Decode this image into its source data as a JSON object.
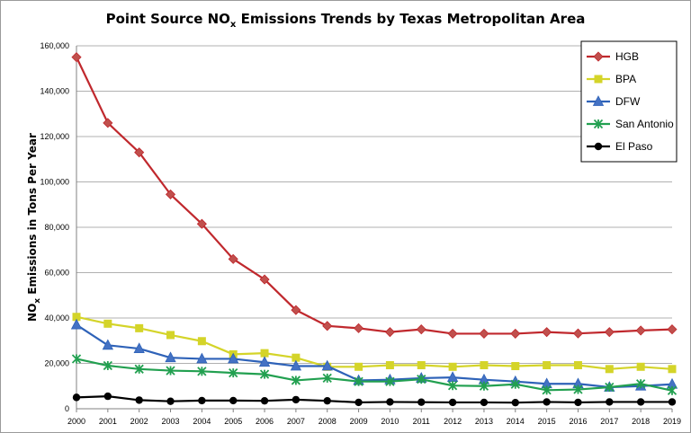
{
  "chart_data": {
    "type": "line",
    "title": "Point Source NOx Emissions Trends by Texas Metropolitan Area",
    "title_parts": {
      "pre": "Point Source NO",
      "sub": "x",
      "post": " Emissions Trends by Texas Metropolitan Area"
    },
    "ylabel": "NOx Emissions in Tons Per Year",
    "ylabel_parts": {
      "pre": "NO",
      "sub": "x",
      "post": " Emissions in Tons Per Year"
    },
    "xlabel": "",
    "ylim": [
      0,
      160000
    ],
    "yticks": [
      0,
      20000,
      40000,
      60000,
      80000,
      100000,
      120000,
      140000,
      160000
    ],
    "ytick_labels": [
      "0",
      "20,000",
      "40,000",
      "60,000",
      "80,000",
      "100,000",
      "120,000",
      "140,000",
      "160,000"
    ],
    "grid": true,
    "legend_position": "top-right",
    "categories": [
      "2000",
      "2001",
      "2002",
      "2003",
      "2004",
      "2005",
      "2006",
      "2007",
      "2008",
      "2009",
      "2010",
      "2011",
      "2012",
      "2013",
      "2014",
      "2015",
      "2016",
      "2017",
      "2018",
      "2019"
    ],
    "series": [
      {
        "name": "HGB",
        "color": "#c0282d",
        "marker": "diamond",
        "values": [
          155000,
          126000,
          113000,
          94500,
          81500,
          66000,
          57000,
          43500,
          36500,
          35500,
          33800,
          35000,
          33100,
          33100,
          33100,
          33800,
          33200,
          33800,
          34500,
          35000
        ]
      },
      {
        "name": "BPA",
        "color": "#d4d429",
        "marker": "square",
        "values": [
          40500,
          37500,
          35500,
          32500,
          29800,
          24000,
          24500,
          22500,
          18500,
          18500,
          19200,
          19200,
          18500,
          19200,
          18800,
          19200,
          19200,
          17500,
          18500,
          17500
        ]
      },
      {
        "name": "DFW",
        "color": "#2e62b8",
        "marker": "triangle",
        "values": [
          37000,
          28000,
          26500,
          22500,
          22000,
          22000,
          20500,
          18800,
          18800,
          12500,
          12800,
          13500,
          13800,
          12800,
          12000,
          11000,
          11000,
          9500,
          10000,
          10800
        ]
      },
      {
        "name": "San Antonio",
        "color": "#22a050",
        "marker": "asterisk",
        "values": [
          22000,
          19000,
          17500,
          16800,
          16500,
          15800,
          15200,
          12500,
          13500,
          12000,
          12000,
          13000,
          10200,
          10000,
          10800,
          8200,
          8500,
          9500,
          11000,
          8000
        ]
      },
      {
        "name": "El Paso",
        "color": "#000000",
        "marker": "circle",
        "values": [
          5000,
          5500,
          3800,
          3300,
          3600,
          3600,
          3500,
          4000,
          3500,
          2800,
          3000,
          2900,
          2800,
          2800,
          2700,
          3000,
          2800,
          3000,
          3000,
          3000
        ]
      }
    ]
  }
}
